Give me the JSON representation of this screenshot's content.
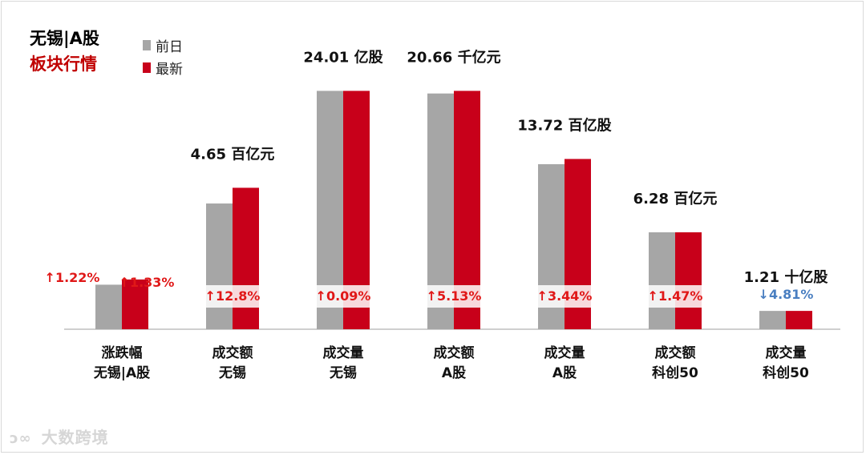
{
  "header": {
    "title_line1": "无锡|A股",
    "title_line2": "板块行情"
  },
  "legend": [
    {
      "label": "前日",
      "color": "#a6a6a6"
    },
    {
      "label": "最新",
      "color": "#c8001a"
    }
  ],
  "colors": {
    "prev": "#a6a6a6",
    "latest": "#c8001a",
    "up": "#e01818",
    "down": "#4a7fc1",
    "accent_title": "#c00000"
  },
  "watermark": {
    "icon": "logo-icon",
    "text": "大数跨境"
  },
  "chart_data": {
    "type": "bar",
    "categories": [
      [
        "涨跌幅",
        "无锡|A股"
      ],
      [
        "成交额",
        "无锡"
      ],
      [
        "成交量",
        "无锡"
      ],
      [
        "成交额",
        "A股"
      ],
      [
        "成交量",
        "A股"
      ],
      [
        "成交额",
        "科创50"
      ],
      [
        "成交量",
        "科创50"
      ]
    ],
    "series": [
      {
        "name": "前日",
        "values": [
          0.17,
          0.48,
          0.91,
          0.9,
          0.63,
          0.37,
          0.07
        ]
      },
      {
        "name": "最新",
        "values": [
          0.19,
          0.54,
          0.91,
          0.91,
          0.65,
          0.37,
          0.07
        ]
      }
    ],
    "value_labels": [
      "",
      "4.65 百亿元",
      "24.01 亿股",
      "20.66 千亿元",
      "13.72 百亿股",
      "6.28 百亿元",
      "1.21 十亿股"
    ],
    "change_labels": [
      {
        "text": "1.22%",
        "direction": "up"
      },
      {
        "text": "12.8%",
        "direction": "up"
      },
      {
        "text": "0.09%",
        "direction": "up"
      },
      {
        "text": "5.13%",
        "direction": "up"
      },
      {
        "text": "3.44%",
        "direction": "up"
      },
      {
        "text": "1.47%",
        "direction": "up"
      },
      {
        "text": "4.81%",
        "direction": "down"
      }
    ],
    "extra_change_label": {
      "text": "1.33%",
      "direction": "up"
    },
    "ylim": [
      0,
      1
    ],
    "xlabel": "",
    "ylabel": "",
    "grid": false,
    "legend_position": "top-left"
  }
}
